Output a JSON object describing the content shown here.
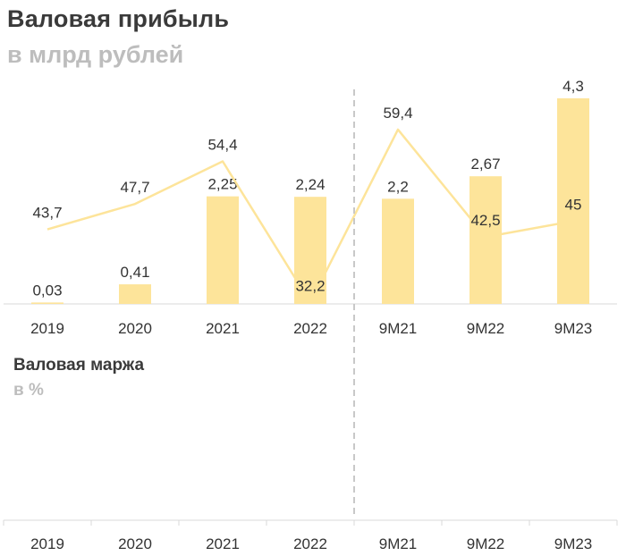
{
  "chart_data": [
    {
      "type": "bar",
      "title": "Валовая прибыль",
      "subtitle": "в млрд рублей",
      "categories": [
        "2019",
        "2020",
        "2021",
        "2022",
        "9M21",
        "9M22",
        "9M23"
      ],
      "values": [
        0.03,
        0.41,
        2.25,
        2.24,
        2.2,
        2.67,
        4.3
      ],
      "value_labels": [
        "0,03",
        "0,41",
        "2,25",
        "2,24",
        "2,2",
        "2,67",
        "4,3"
      ],
      "ylim": [
        0,
        4.3
      ],
      "grid": false,
      "bar_color": "#fde49a",
      "separator_after_category": "2022"
    },
    {
      "type": "line",
      "title": "Валовая маржа",
      "subtitle": "в %",
      "categories": [
        "2019",
        "2020",
        "2021",
        "2022",
        "9M21",
        "9M22",
        "9M23"
      ],
      "values": [
        43.7,
        47.7,
        54.4,
        32.2,
        59.4,
        42.5,
        45
      ],
      "value_labels": [
        "43,7",
        "47,7",
        "54,4",
        "32,2",
        "59,4",
        "42,5",
        "45"
      ],
      "grid": false,
      "line_color": "#fde49a",
      "separator_after_category": "2022"
    }
  ]
}
